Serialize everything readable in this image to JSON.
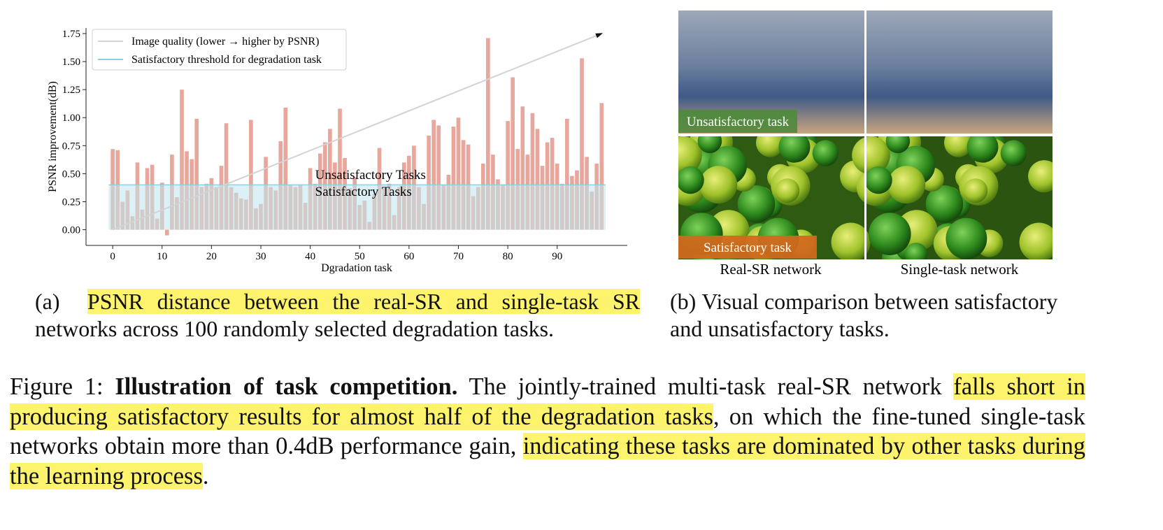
{
  "chart_data": {
    "type": "bar",
    "xlabel": "Dgradation task",
    "ylabel": "PSNR improvement(dB)",
    "x": [
      0,
      1,
      2,
      3,
      4,
      5,
      6,
      7,
      8,
      9,
      10,
      11,
      12,
      13,
      14,
      15,
      16,
      17,
      18,
      19,
      20,
      21,
      22,
      23,
      24,
      25,
      26,
      27,
      28,
      29,
      30,
      31,
      32,
      33,
      34,
      35,
      36,
      37,
      38,
      39,
      40,
      41,
      42,
      43,
      44,
      45,
      46,
      47,
      48,
      49,
      50,
      51,
      52,
      53,
      54,
      55,
      56,
      57,
      58,
      59,
      60,
      61,
      62,
      63,
      64,
      65,
      66,
      67,
      68,
      69,
      70,
      71,
      72,
      73,
      74,
      75,
      76,
      77,
      78,
      79,
      80,
      81,
      82,
      83,
      84,
      85,
      86,
      87,
      88,
      89,
      90,
      91,
      92,
      93,
      94,
      95,
      96,
      97,
      98,
      99
    ],
    "values": [
      0.72,
      0.71,
      0.25,
      0.35,
      0.12,
      0.6,
      0.18,
      0.55,
      0.58,
      0.1,
      0.42,
      -0.05,
      0.67,
      0.29,
      1.25,
      0.7,
      0.63,
      0.99,
      0.38,
      0.41,
      0.46,
      0.38,
      0.57,
      0.95,
      0.38,
      0.33,
      0.28,
      0.27,
      0.98,
      0.19,
      0.23,
      0.65,
      0.38,
      0.35,
      0.79,
      1.09,
      0.4,
      0.38,
      0.4,
      0.24,
      0.55,
      0.41,
      0.68,
      0.78,
      0.9,
      0.6,
      1.08,
      0.64,
      0.37,
      0.47,
      0.22,
      0.26,
      0.07,
      0.32,
      0.73,
      0.37,
      0.41,
      0.13,
      0.38,
      0.6,
      0.66,
      0.75,
      0.38,
      0.23,
      0.84,
      0.98,
      0.93,
      0.4,
      0.49,
      0.92,
      1.0,
      0.8,
      0.76,
      0.3,
      0.38,
      0.59,
      1.71,
      0.67,
      0.45,
      0.4,
      0.97,
      1.36,
      0.72,
      1.1,
      0.67,
      1.04,
      0.9,
      0.57,
      0.78,
      0.82,
      0.59,
      0.41,
      0.99,
      0.48,
      0.53,
      1.53,
      0.65,
      0.34,
      0.59,
      1.13
    ],
    "color": "#e8a79c",
    "trend": {
      "name": "Image quality (lower → higher by PSNR)",
      "x": [
        0,
        99
      ],
      "y": [
        0,
        1.75
      ],
      "color": "#d3d3d3"
    },
    "threshold": {
      "name": "Satisfactory threshold for degradation task",
      "value": 0.4,
      "color": "#8fd0de",
      "fill": "#bfe6ef"
    },
    "annotations": [
      {
        "text": "Unsatisfactory Tasks",
        "x": 41,
        "y": 0.49
      },
      {
        "text": "Satisfactory Tasks",
        "x": 41,
        "y": 0.34
      }
    ],
    "xlim": [
      -5.4,
      104.2
    ],
    "ylim": [
      -0.14,
      1.8
    ],
    "xticks": [
      0,
      10,
      20,
      30,
      40,
      50,
      60,
      70,
      80,
      90
    ],
    "yticks": [
      {
        "value": 0,
        "label": "0.00"
      },
      {
        "value": 0.25,
        "label": "0.25"
      },
      {
        "value": 0.5,
        "label": "0.50"
      },
      {
        "value": 0.75,
        "label": "0.75"
      },
      {
        "value": 1,
        "label": "1.00"
      },
      {
        "value": 1.25,
        "label": "1.25"
      },
      {
        "value": 1.5,
        "label": "1.50"
      },
      {
        "value": 1.75,
        "label": "1.75"
      }
    ],
    "legend": "upper left"
  },
  "images": {
    "tag_unsatisfactory": "Unsatisfactory task",
    "tag_satisfactory": "Satisfactory task",
    "col_left": "Real-SR network",
    "col_right": "Single-task network"
  },
  "caption_a": {
    "label": "(a)",
    "segments": [
      {
        "text": "PSNR distance between the real-SR and single-task SR",
        "highlight": true
      },
      {
        "text": " networks across 100 randomly selected degradation tasks.",
        "highlight": false
      }
    ]
  },
  "caption_b": {
    "label": "(b)",
    "segments": [
      {
        "text": "Visual comparison between satisfactory and unsatisfactory tasks.",
        "highlight": false
      }
    ]
  },
  "figure_caption": {
    "label": "Figure 1:",
    "bold": "Illustration of task competition.",
    "segments": [
      {
        "text": " The jointly-trained multi-task real-SR network ",
        "highlight": false
      },
      {
        "text": "falls short in producing satisfactory results for almost half of the degradation tasks",
        "highlight": true
      },
      {
        "text": ", on which the fine-tuned single-task networks obtain more than 0.4dB performance gain, ",
        "highlight": false
      },
      {
        "text": "indicating these tasks are dominated by other tasks during the learning process",
        "highlight": true
      },
      {
        "text": ".",
        "highlight": false
      }
    ]
  }
}
